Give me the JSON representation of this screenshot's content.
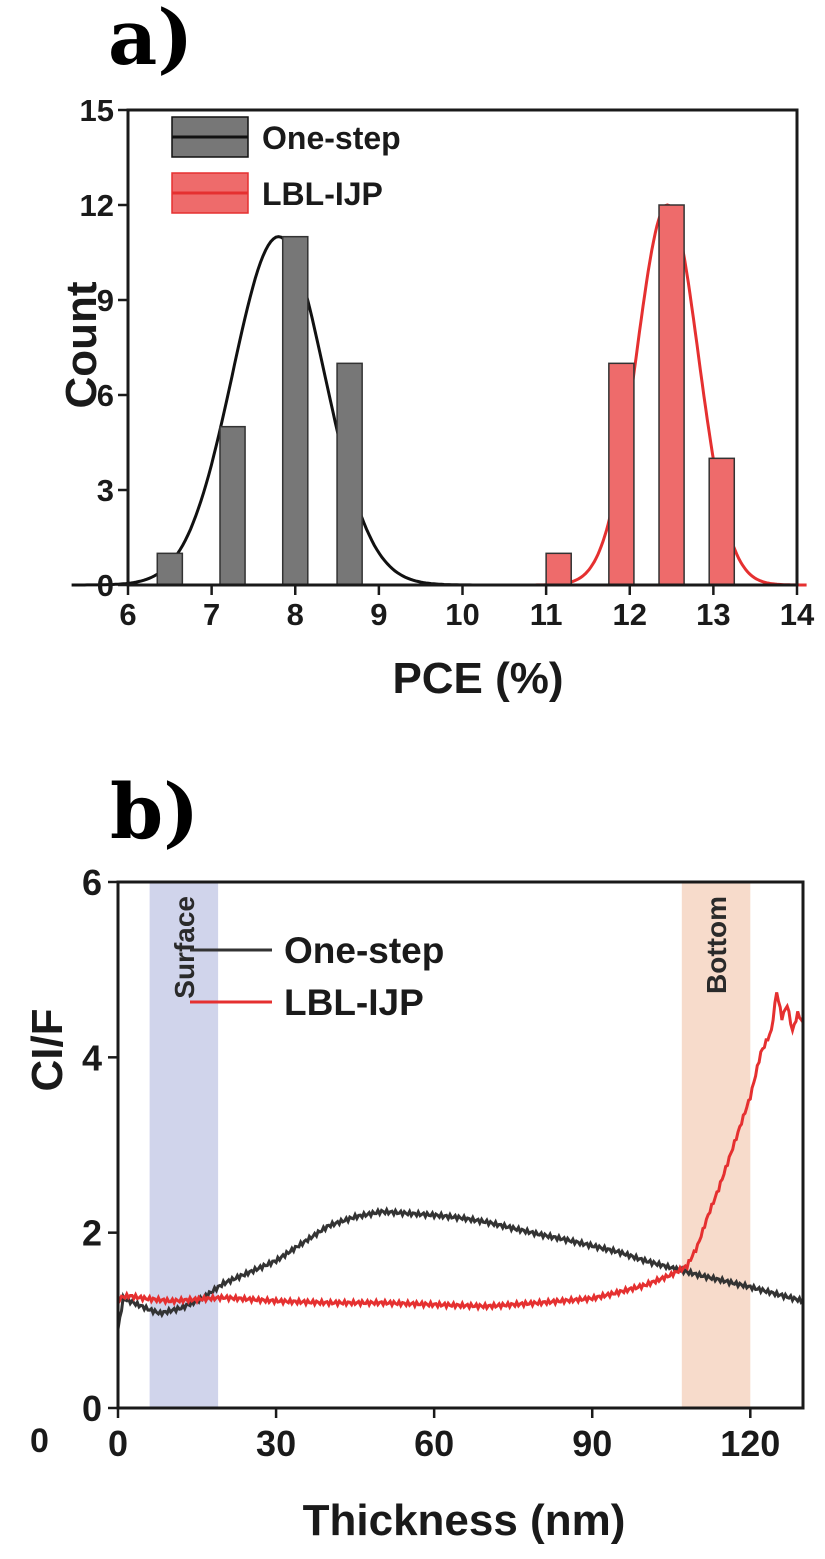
{
  "panels": {
    "a": {
      "label": "a)"
    },
    "b": {
      "label": "b)"
    }
  },
  "stray_label": "0",
  "chart_data": [
    {
      "type": "bar",
      "panel": "a",
      "title": "",
      "xlabel": "PCE (%)",
      "ylabel": "Count",
      "xlim": [
        6,
        14
      ],
      "ylim": [
        0,
        15
      ],
      "xticks": [
        6,
        7,
        8,
        9,
        10,
        11,
        12,
        13,
        14
      ],
      "yticks": [
        0,
        3,
        6,
        9,
        12,
        15
      ],
      "bin_width": 0.5,
      "legend_position": "top-left",
      "series": [
        {
          "name": "One-step",
          "color": "#777777",
          "fit_color": "#111111",
          "bin_centers": [
            6.5,
            7.25,
            8.0,
            8.65
          ],
          "counts": [
            1,
            5,
            11,
            7
          ],
          "fit": {
            "mean": 7.8,
            "sd": 0.55,
            "amplitude": 11
          }
        },
        {
          "name": "LBL-IJP",
          "color": "#ee6b6b",
          "fit_color": "#e53030",
          "bin_centers": [
            11.15,
            11.9,
            12.5,
            13.1
          ],
          "counts": [
            1,
            7,
            12,
            4
          ],
          "fit": {
            "mean": 12.45,
            "sd": 0.37,
            "amplitude": 12
          }
        }
      ]
    },
    {
      "type": "line",
      "panel": "b",
      "title": "",
      "xlabel": "Thickness (nm)",
      "ylabel": "CI/F",
      "xlim": [
        0,
        130
      ],
      "ylim": [
        0,
        6
      ],
      "xticks": [
        0,
        30,
        60,
        90,
        120
      ],
      "yticks": [
        0,
        2,
        4,
        6
      ],
      "legend_position": "top-left",
      "bands": [
        {
          "label": "Surface",
          "from": 6,
          "to": 19,
          "color": "#c8cde8"
        },
        {
          "label": "Bottom",
          "from": 107,
          "to": 120,
          "color": "#f6d5c2"
        }
      ],
      "series": [
        {
          "name": "One-step",
          "color": "#333333",
          "x": [
            0,
            1,
            3,
            6,
            8,
            12,
            16,
            20,
            25,
            30,
            35,
            40,
            45,
            50,
            55,
            60,
            65,
            70,
            75,
            80,
            85,
            90,
            95,
            100,
            105,
            110,
            115,
            120,
            125,
            130
          ],
          "y": [
            0.9,
            1.25,
            1.2,
            1.12,
            1.08,
            1.14,
            1.25,
            1.42,
            1.55,
            1.68,
            1.88,
            2.08,
            2.18,
            2.24,
            2.22,
            2.2,
            2.17,
            2.12,
            2.05,
            1.98,
            1.92,
            1.85,
            1.78,
            1.68,
            1.6,
            1.52,
            1.45,
            1.38,
            1.3,
            1.22
          ]
        },
        {
          "name": "LBL-IJP",
          "color": "#e53030",
          "x": [
            0,
            2,
            5,
            10,
            15,
            20,
            30,
            40,
            50,
            60,
            70,
            80,
            90,
            95,
            100,
            105,
            108,
            110,
            112,
            114,
            116,
            118,
            120,
            122,
            124,
            125,
            126,
            127,
            128,
            129,
            130
          ],
          "y": [
            1.25,
            1.28,
            1.25,
            1.22,
            1.24,
            1.26,
            1.22,
            1.2,
            1.2,
            1.18,
            1.16,
            1.2,
            1.25,
            1.32,
            1.4,
            1.52,
            1.62,
            1.85,
            2.2,
            2.5,
            2.85,
            3.2,
            3.55,
            4.05,
            4.3,
            4.75,
            4.45,
            4.6,
            4.3,
            4.5,
            4.4
          ]
        }
      ]
    }
  ]
}
